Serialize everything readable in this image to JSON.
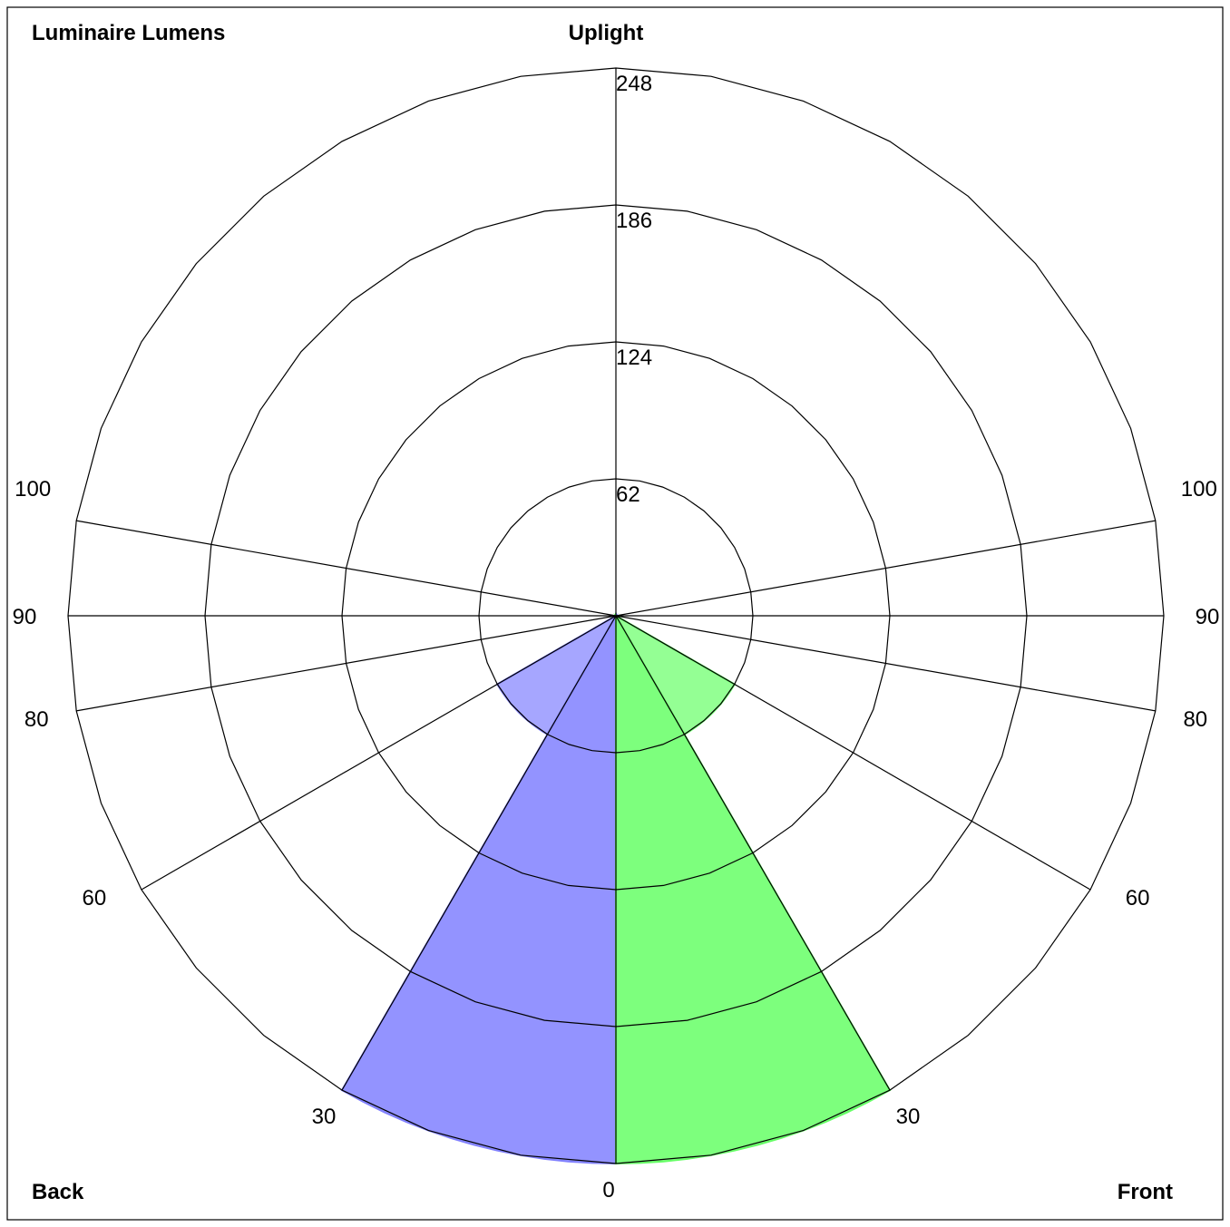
{
  "chart_data": {
    "type": "polar-area",
    "title": "Luminaire Lumens",
    "corner_labels": {
      "top": "Uplight",
      "bottom_left": "Back",
      "bottom_right": "Front"
    },
    "radial_axis": {
      "max": 248,
      "ticks": [
        62,
        124,
        186,
        248
      ],
      "tick_labels": [
        "62",
        "124",
        "186",
        "248"
      ]
    },
    "angle_labels": {
      "left": [
        {
          "angle": 0,
          "label": "0"
        },
        {
          "angle": 30,
          "label": "30"
        },
        {
          "angle": 60,
          "label": "60"
        },
        {
          "angle": 80,
          "label": "80"
        },
        {
          "angle": 90,
          "label": "90"
        },
        {
          "angle": 100,
          "label": "100"
        }
      ],
      "right": [
        {
          "angle": 30,
          "label": "30"
        },
        {
          "angle": 60,
          "label": "60"
        },
        {
          "angle": 80,
          "label": "80"
        },
        {
          "angle": 90,
          "label": "90"
        },
        {
          "angle": 100,
          "label": "100"
        }
      ]
    },
    "spoke_angles": [
      30,
      60,
      80,
      90,
      100
    ],
    "series": [
      {
        "side": "back",
        "color": "#8080ff",
        "zones": [
          {
            "from": 0,
            "to": 30,
            "value": 248
          },
          {
            "from": 30,
            "to": 60,
            "value": 62
          }
        ]
      },
      {
        "side": "front",
        "color": "#66ff66",
        "zones": [
          {
            "from": 0,
            "to": 30,
            "value": 248
          },
          {
            "from": 30,
            "to": 60,
            "value": 62
          }
        ]
      }
    ],
    "grid": true
  }
}
